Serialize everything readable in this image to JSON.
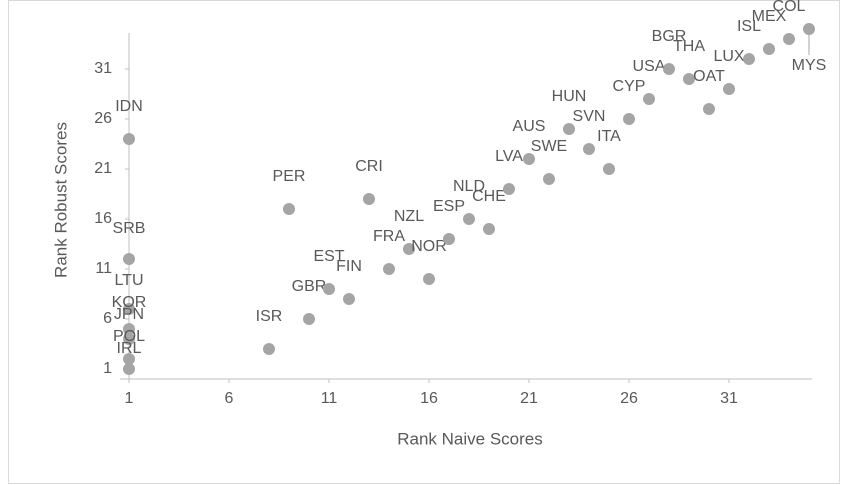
{
  "chart_data": {
    "type": "scatter",
    "x_label": "Rank Naive Scores",
    "y_label": "Rank Robust Scores",
    "labels": [
      "IDN",
      "SRB",
      "LTU",
      "KOR",
      "JPN",
      "POL",
      "IRL",
      "ISR",
      "PER",
      "GBR",
      "EST",
      "FIN",
      "CRI",
      "FRA",
      "NZL",
      "NOR",
      "ESP",
      "NLD",
      "CHE",
      "LVA",
      "AUS",
      "SWE",
      "HUN",
      "SVN",
      "ITA",
      "CYP",
      "USA",
      "BGR",
      "THA",
      "OAT",
      "LUX",
      "ISL",
      "MEX",
      "COL",
      "MYS"
    ],
    "x": [
      1,
      1,
      1,
      1,
      1,
      1,
      1,
      8,
      9,
      10,
      11,
      12,
      13,
      14,
      15,
      16,
      17,
      18,
      19,
      20,
      21,
      22,
      23,
      24,
      25,
      26,
      27,
      28,
      29,
      30,
      31,
      32,
      33,
      34,
      35
    ],
    "y": [
      24,
      12,
      7,
      5,
      4,
      2,
      1,
      3,
      17,
      6,
      9,
      8,
      18,
      11,
      13,
      10,
      14,
      16,
      15,
      19,
      22,
      20,
      25,
      23,
      21,
      26,
      28,
      31,
      30,
      27,
      29,
      32,
      33,
      34,
      35
    ],
    "color": "#a5a5a5",
    "xlim": [
      1,
      35
    ],
    "ylim": [
      1,
      35
    ],
    "xticks": [
      1,
      6,
      11,
      16,
      21,
      26,
      31
    ],
    "yticks": [
      1,
      6,
      11,
      16,
      21,
      26,
      31
    ]
  }
}
